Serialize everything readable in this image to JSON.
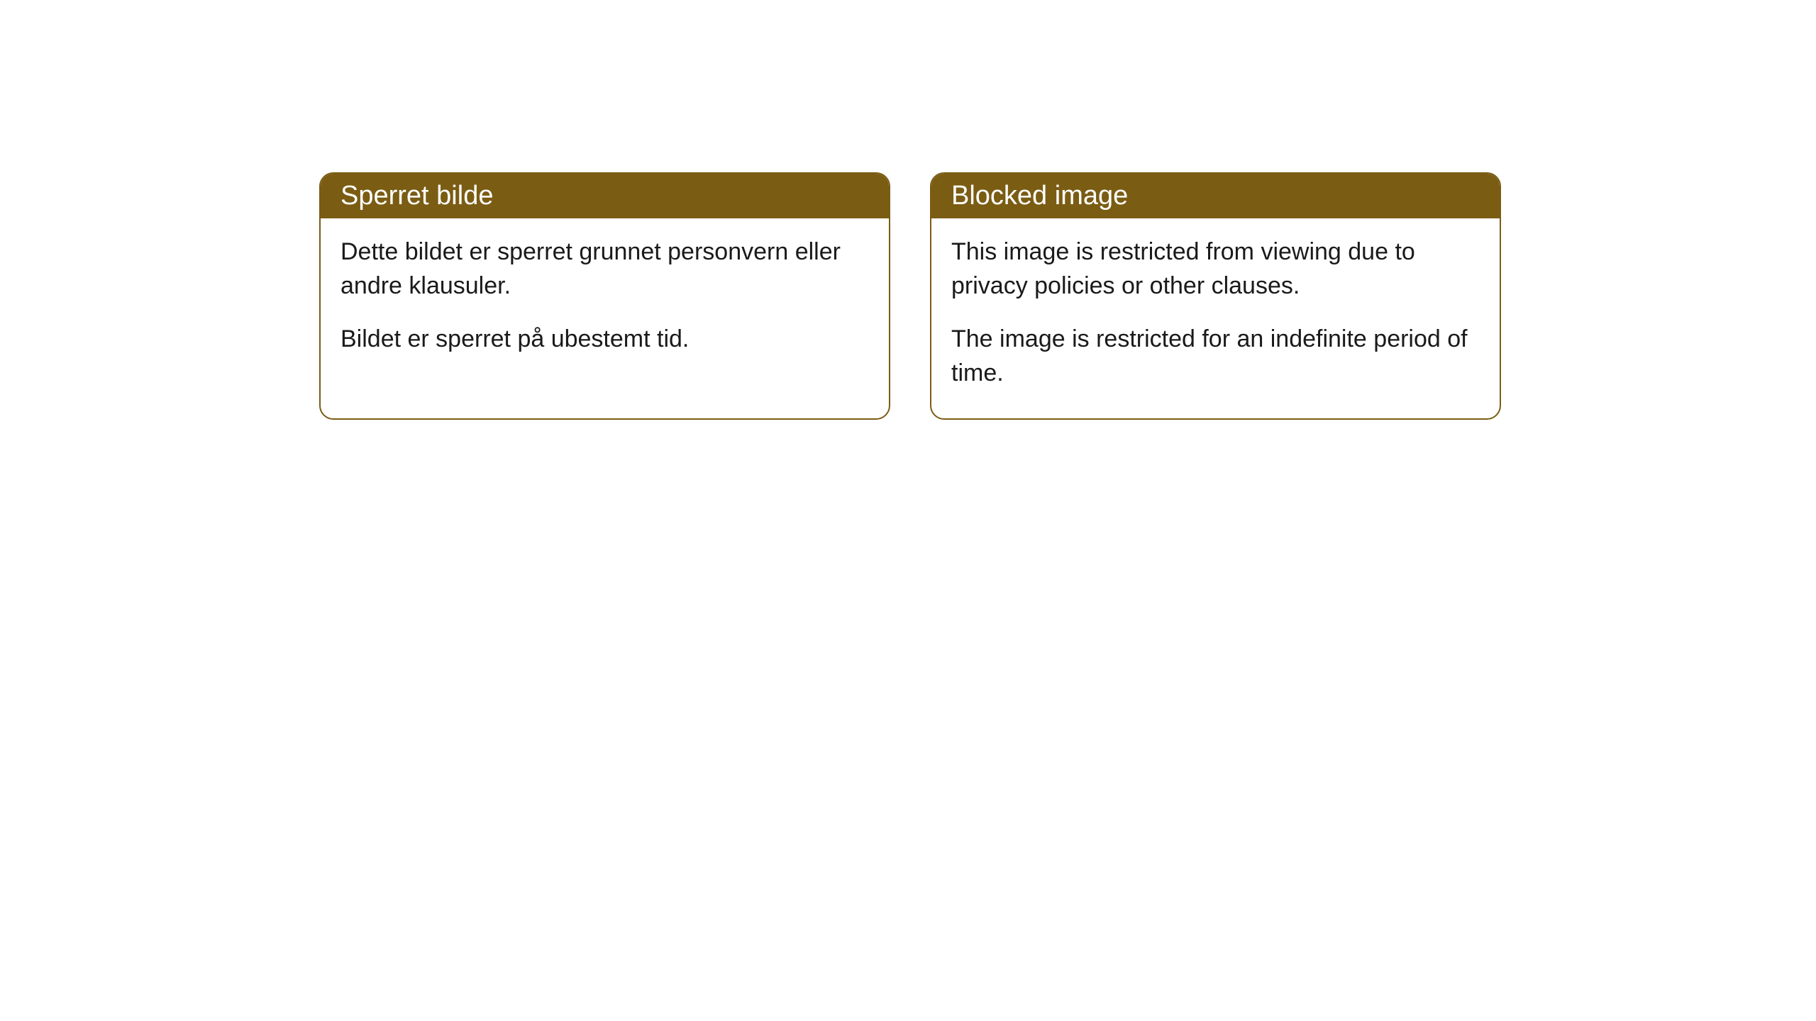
{
  "cards": [
    {
      "title": "Sperret bilde",
      "paragraph1": "Dette bildet er sperret grunnet personvern eller andre klausuler.",
      "paragraph2": "Bildet er sperret på ubestemt tid."
    },
    {
      "title": "Blocked image",
      "paragraph1": "This image is restricted from viewing due to privacy policies or other clauses.",
      "paragraph2": "The image is restricted for an indefinite period of time."
    }
  ],
  "style": {
    "header_bg_color": "#7a5c13",
    "header_text_color": "#ffffff",
    "border_color": "#7a5c13",
    "body_bg_color": "#ffffff",
    "body_text_color": "#1a1a1a",
    "border_radius": 20,
    "header_fontsize": 38,
    "body_fontsize": 34
  }
}
